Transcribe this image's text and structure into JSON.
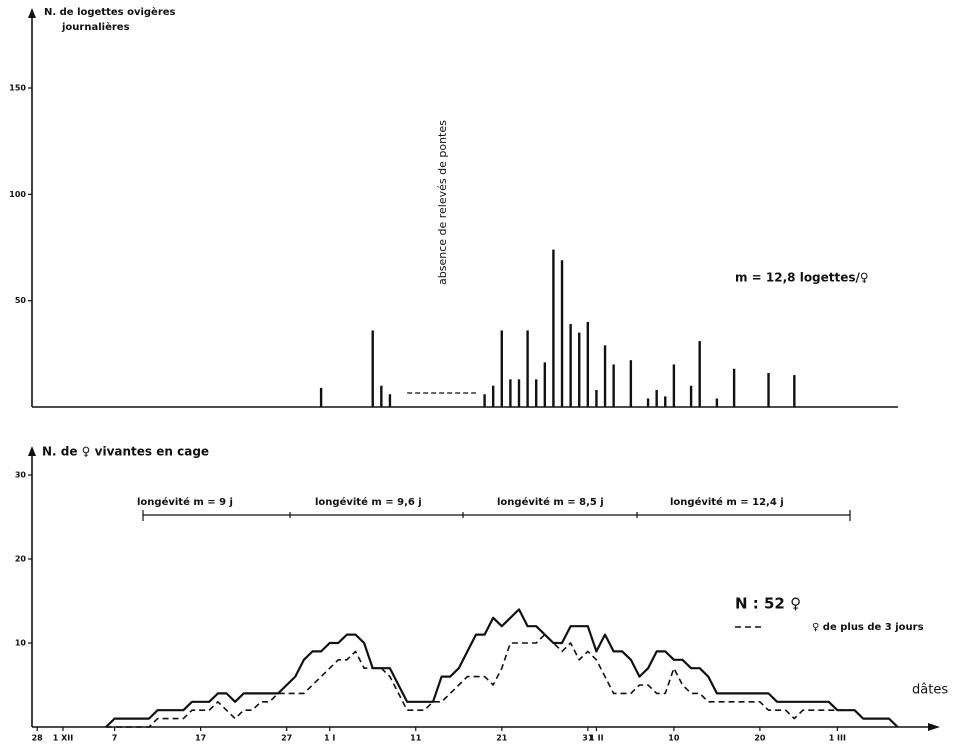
{
  "chart_data": [
    {
      "type": "bar",
      "ylabel": [
        "N. de logettes ovigères",
        "journalières"
      ],
      "x": [
        33,
        39,
        40,
        41,
        52,
        53,
        54,
        55,
        56,
        57,
        58,
        59,
        60,
        61,
        62,
        63,
        64,
        65,
        66,
        67,
        69,
        71,
        72,
        73,
        74,
        76,
        77,
        79,
        81,
        85,
        88
      ],
      "values": [
        9,
        36,
        10,
        6,
        6,
        10,
        36,
        13,
        13,
        36,
        13,
        21,
        74,
        69,
        39,
        35,
        40,
        8,
        29,
        20,
        22,
        4,
        8,
        5,
        20,
        10,
        31,
        4,
        18,
        16,
        15
      ],
      "color": "#111111",
      "xlim": [
        -0.6,
        104
      ],
      "ylim": [
        0,
        150
      ],
      "yticks": [
        50,
        100,
        150
      ],
      "annotations": [
        "absence de relevés de pontes",
        "m = 12,8 logettes/♀"
      ]
    },
    {
      "type": "line",
      "ylabel": "N. de ♀ vivantes en cage",
      "xlabel": "dâtes",
      "x": [
        8,
        9,
        10,
        11,
        12,
        13,
        14,
        15,
        16,
        17,
        18,
        19,
        20,
        21,
        22,
        23,
        24,
        25,
        26,
        27,
        28,
        29,
        30,
        31,
        32,
        33,
        34,
        35,
        36,
        37,
        38,
        39,
        40,
        41,
        42,
        43,
        44,
        45,
        46,
        47,
        48,
        49,
        50,
        51,
        52,
        53,
        54,
        55,
        56,
        57,
        58,
        59,
        60,
        61,
        62,
        63,
        64,
        65,
        66,
        67,
        68,
        69,
        70,
        71,
        72,
        73,
        74,
        75,
        76,
        77,
        78,
        79,
        80,
        81,
        82,
        83,
        84,
        85,
        86,
        87,
        88,
        89,
        90,
        91,
        92,
        93,
        94,
        95,
        96,
        97,
        98,
        99,
        100
      ],
      "series": [
        {
          "name": "N : 52 ♀",
          "color": "#111111",
          "dash": false,
          "values": [
            0,
            1,
            1,
            1,
            1,
            1,
            2,
            2,
            2,
            2,
            3,
            3,
            3,
            4,
            4,
            3,
            4,
            4,
            4,
            4,
            4,
            5,
            6,
            8,
            9,
            9,
            10,
            10,
            11,
            11,
            10,
            7,
            7,
            7,
            5,
            3,
            3,
            3,
            3,
            6,
            6,
            7,
            9,
            11,
            11,
            13,
            12,
            13,
            14,
            12,
            12,
            11,
            10,
            10,
            12,
            12,
            12,
            9,
            11,
            9,
            9,
            8,
            6,
            7,
            9,
            9,
            8,
            8,
            7,
            7,
            6,
            4,
            4,
            4,
            4,
            4,
            4,
            4,
            3,
            3,
            3,
            3,
            3,
            3,
            3,
            2,
            2,
            2,
            1,
            1,
            1,
            1,
            0
          ]
        },
        {
          "name": "♀ de plus de 3 jours",
          "color": "#111111",
          "dash": true,
          "values": [
            0,
            0,
            0,
            0,
            0,
            0,
            1,
            1,
            1,
            1,
            2,
            2,
            2,
            3,
            2,
            1,
            2,
            2,
            3,
            3,
            4,
            4,
            4,
            4,
            5,
            6,
            7,
            8,
            8,
            9,
            7,
            7,
            7,
            6,
            4,
            2,
            2,
            2,
            3,
            3,
            4,
            5,
            6,
            6,
            6,
            5,
            7,
            10,
            10,
            10,
            10,
            11,
            10,
            9,
            10,
            8,
            9,
            8,
            6,
            4,
            4,
            4,
            5,
            5,
            4,
            4,
            7,
            5,
            4,
            4,
            3,
            3,
            3,
            3,
            3,
            3,
            3,
            2,
            2,
            2,
            1,
            2,
            2,
            2,
            2,
            2,
            2,
            2,
            1,
            1,
            1,
            1,
            0
          ]
        }
      ],
      "xlim": [
        -0.6,
        104
      ],
      "ylim": [
        0,
        30
      ],
      "yticks": [
        10,
        20,
        30
      ],
      "xticks": [
        {
          "value": 0,
          "label": "28"
        },
        {
          "value": 3,
          "label": "1 XII"
        },
        {
          "value": 9,
          "label": "7"
        },
        {
          "value": 19,
          "label": "17"
        },
        {
          "value": 29,
          "label": "27"
        },
        {
          "value": 34,
          "label": "1 I"
        },
        {
          "value": 44,
          "label": "11"
        },
        {
          "value": 54,
          "label": "21"
        },
        {
          "value": 64,
          "label": "31"
        },
        {
          "value": 65,
          "label": "1 II"
        },
        {
          "value": 74,
          "label": "10"
        },
        {
          "value": 84,
          "label": "20"
        },
        {
          "value": 93,
          "label": "1 III"
        }
      ],
      "annotations": [
        "longévité m = 9 j",
        "longévité m = 9,6 j",
        "longévité m = 8,5 j",
        "longévité m = 12,4 j"
      ]
    }
  ]
}
